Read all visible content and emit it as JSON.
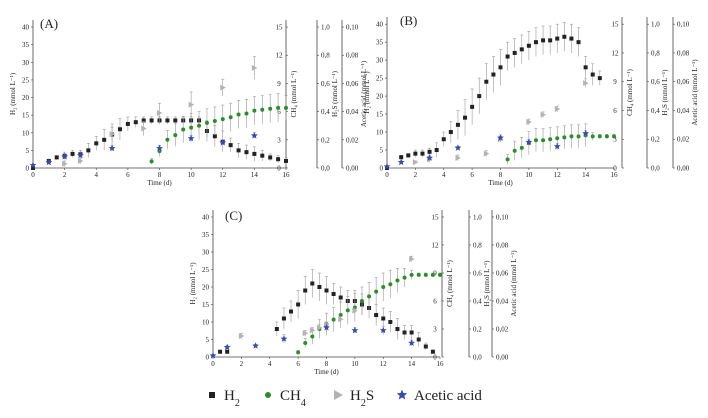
{
  "figure": {
    "legend": [
      {
        "key": "h2",
        "label": "H",
        "sub": "2",
        "symbol": "square",
        "color": "#222222"
      },
      {
        "key": "ch4",
        "label": "CH",
        "sub": "4",
        "symbol": "circle",
        "color": "#2e8b2e"
      },
      {
        "key": "h2s",
        "label": "H",
        "sub": "2",
        "tail": "S",
        "symbol": "triangle",
        "color": "#b3b3b3"
      },
      {
        "key": "acetic",
        "label": "Acetic acid",
        "symbol": "star",
        "color": "#3b4ca8"
      }
    ]
  },
  "chart_data": [
    {
      "panel": "(A)",
      "type": "scatter",
      "xlabel": "Time (d)",
      "xlim": [
        0,
        16
      ],
      "xticks": [
        0,
        2,
        4,
        6,
        8,
        10,
        12,
        14,
        16
      ],
      "axes": {
        "h2": {
          "label": "H₂ (mmol L⁻¹)",
          "lim": [
            0,
            42
          ],
          "ticks": [
            0,
            5,
            10,
            15,
            20,
            25,
            30,
            35,
            40
          ]
        },
        "ch4": {
          "label": "CH₄ (mmol L⁻¹)",
          "lim": [
            0,
            15.75
          ],
          "ticks": [
            0,
            3,
            6,
            9,
            12,
            15
          ]
        },
        "h2s": {
          "label": "H₂S (mmol L⁻¹)",
          "lim": [
            0,
            1.05
          ],
          "ticks": [
            "0,0",
            "0,2",
            "0,4",
            "0,6",
            "0,8",
            "1,0"
          ]
        },
        "acetic": {
          "label": "Acetic acid (mmol L⁻¹)",
          "lim": [
            0,
            0.105
          ],
          "ticks": [
            "0,00",
            "0,02",
            "0,04",
            "0,06",
            "0,08",
            "0,10"
          ]
        }
      },
      "series": [
        {
          "name": "H₂",
          "x": [
            0,
            1,
            1.5,
            2,
            2.5,
            3,
            3.5,
            4,
            4.5,
            5,
            5.5,
            6,
            6.5,
            7,
            7.5,
            8,
            8.5,
            9,
            9.5,
            10,
            10.5,
            11,
            11.5,
            12,
            12.5,
            13,
            13.5,
            14,
            14.5,
            15,
            15.5,
            16
          ],
          "y": [
            0,
            2,
            3,
            3.5,
            4,
            4,
            5,
            7,
            8,
            9.5,
            11,
            12.5,
            13,
            13.5,
            13.5,
            13.5,
            13.5,
            13.5,
            13.5,
            13.5,
            13.5,
            10.5,
            9,
            7.5,
            6.5,
            5,
            4.5,
            4,
            3.5,
            3,
            2.5,
            2
          ],
          "err": [
            0,
            0.5,
            0.5,
            1,
            1,
            1,
            2,
            2,
            3,
            3,
            3,
            2,
            1.5,
            1,
            1,
            1,
            1,
            1,
            1,
            1,
            1,
            3,
            3,
            3,
            2,
            2,
            2,
            2,
            1.5,
            1,
            1,
            1
          ]
        },
        {
          "name": "CH₄",
          "x": [
            7.5,
            8,
            8.5,
            9,
            9.5,
            10,
            10.5,
            11,
            11.5,
            12,
            12.5,
            13,
            13.5,
            14,
            14.5,
            15,
            15.5,
            16
          ],
          "y": [
            0.7,
            1.8,
            3,
            3.5,
            4.1,
            4.3,
            4.5,
            4.8,
            5,
            5.2,
            5.4,
            5.7,
            5.8,
            6.1,
            6.2,
            6.3,
            6.4,
            6.4
          ],
          "err": [
            0.3,
            0.6,
            1,
            1.2,
            1.4,
            1.5,
            1.5,
            1.5,
            1.5,
            1.5,
            1.5,
            1.5,
            1.5,
            1.5,
            1.5,
            1.5,
            1.5,
            1.3
          ]
        },
        {
          "name": "H₂S",
          "x": [
            2,
            3,
            5,
            7,
            8,
            10,
            12,
            14
          ],
          "y": [
            0.03,
            0.05,
            0.24,
            0.28,
            0.39,
            0.45,
            0.57,
            0.71
          ],
          "err": [
            0.02,
            0.02,
            0.05,
            0.05,
            0.07,
            0.09,
            0.06,
            0.08
          ]
        },
        {
          "name": "Acetic acid",
          "x": [
            0,
            1,
            2,
            3,
            5,
            8,
            10,
            12,
            14
          ],
          "y": [
            0.002,
            0.004,
            0.008,
            0.009,
            0.014,
            0.014,
            0.021,
            0.018,
            0.023
          ],
          "err": [
            0,
            0.001,
            0.002,
            0.002,
            0.002,
            0.002,
            0.002,
            0.002,
            0.002
          ]
        }
      ]
    },
    {
      "panel": "(B)",
      "type": "scatter",
      "xlabel": "Time (d)",
      "xlim": [
        0,
        16
      ],
      "xticks": [
        0,
        2,
        4,
        6,
        8,
        10,
        12,
        14,
        16
      ],
      "axes": {
        "h2": {
          "label": "H₂ (mmol L⁻¹)",
          "lim": [
            0,
            42
          ],
          "ticks": [
            0,
            5,
            10,
            15,
            20,
            25,
            30,
            35,
            40
          ]
        },
        "ch4": {
          "label": "CH₄ (mmol L⁻¹)",
          "lim": [
            0,
            15.75
          ],
          "ticks": [
            0,
            3,
            6,
            9,
            12,
            15
          ]
        },
        "h2s": {
          "label": "H₂S (mmol L⁻¹)",
          "lim": [
            0,
            1.05
          ],
          "ticks": [
            "0,0",
            "0,2",
            "0,4",
            "0,6",
            "0,8",
            "1,0"
          ]
        },
        "acetic": {
          "label": "Acetic acid (mmol L⁻¹)",
          "lim": [
            0,
            0.105
          ],
          "ticks": [
            "0,00",
            "0,02",
            "0,04",
            "0,06",
            "0,08",
            "0,10"
          ]
        }
      },
      "series": [
        {
          "name": "H₂",
          "x": [
            0,
            1,
            1.5,
            2,
            2.5,
            3,
            3.5,
            4,
            4.5,
            5,
            5.5,
            6,
            6.5,
            7,
            7.5,
            8,
            8.5,
            9,
            9.5,
            10,
            10.5,
            11,
            11.5,
            12,
            12.5,
            13,
            13.5,
            14,
            14.5,
            15
          ],
          "y": [
            0,
            3,
            3.5,
            4,
            4,
            4.5,
            5,
            8,
            10,
            12,
            14,
            17,
            20,
            24,
            26,
            28,
            31,
            32,
            33,
            34,
            35,
            35.5,
            35.5,
            36,
            36.5,
            36,
            35,
            28,
            26,
            25
          ],
          "err": [
            0,
            0.5,
            0.5,
            1,
            1,
            1,
            2,
            2,
            3,
            4,
            5,
            5,
            5,
            5,
            5,
            5,
            4,
            4,
            4,
            4,
            4,
            4,
            4,
            4,
            4,
            4,
            4,
            3,
            3,
            2
          ]
        },
        {
          "name": "CH₄",
          "x": [
            8.5,
            9,
            9.5,
            10,
            10.5,
            11,
            11.5,
            12,
            12.5,
            13,
            13.5,
            14,
            14.5,
            15,
            15.5,
            16
          ],
          "y": [
            0.9,
            1.8,
            2.1,
            2.6,
            2.9,
            2.9,
            3.0,
            3.1,
            3.2,
            3.3,
            3.3,
            3.4,
            3.3,
            3.3,
            3.3,
            3.3
          ],
          "err": [
            0.5,
            1,
            1.1,
            1.2,
            1.2,
            1.2,
            1.2,
            1.2,
            1.2,
            1.2,
            1.2,
            1.2,
            0.4,
            0.2,
            0.2,
            0.2
          ]
        },
        {
          "name": "H₂S",
          "x": [
            2,
            3,
            5,
            7,
            8,
            10,
            11,
            12,
            14
          ],
          "y": [
            0.04,
            0.06,
            0.07,
            0.1,
            0.2,
            0.32,
            0.37,
            0.41,
            0.59
          ],
          "err": [
            0.01,
            0.02,
            0.02,
            0.02,
            0.02,
            0.02,
            0.02,
            0.02,
            0.03
          ]
        },
        {
          "name": "Acetic acid",
          "x": [
            0,
            1,
            3,
            5,
            8,
            10,
            12,
            14
          ],
          "y": [
            0.001,
            0.004,
            0.007,
            0.014,
            0.021,
            0.018,
            0.015,
            0.024
          ],
          "err": [
            0,
            0.001,
            0.002,
            0.001,
            0.002,
            0.002,
            0.002,
            0.002
          ]
        }
      ]
    },
    {
      "panel": "(C)",
      "type": "scatter",
      "xlabel": "Time (d)",
      "xlim": [
        0,
        16
      ],
      "xticks": [
        0,
        2,
        4,
        6,
        8,
        10,
        12,
        14,
        16
      ],
      "axes": {
        "h2": {
          "label": "H₂ (mmol L⁻¹)",
          "lim": [
            0,
            42
          ],
          "ticks": [
            0,
            5,
            10,
            15,
            20,
            25,
            30,
            35,
            40
          ]
        },
        "ch4": {
          "label": "CH₄ (mmol L⁻¹)",
          "lim": [
            0,
            15.75
          ],
          "ticks": [
            0,
            3,
            6,
            9,
            12,
            15
          ]
        },
        "h2s": {
          "label": "H₂S (mmol L⁻¹)",
          "lim": [
            0,
            1.05
          ],
          "ticks": [
            "0,0",
            "0,2",
            "0,4",
            "0,6",
            "0,8",
            "1,0"
          ]
        },
        "acetic": {
          "label": "Acetic acid (mmol L⁻¹)",
          "lim": [
            0,
            0.105
          ],
          "ticks": [
            "0,00",
            "0,02",
            "0,04",
            "0,06",
            "0,08",
            "0,10"
          ]
        }
      },
      "series": [
        {
          "name": "H₂",
          "x": [
            0.5,
            1,
            4.5,
            5,
            5.5,
            6,
            6.5,
            7,
            7.5,
            8,
            8.5,
            9,
            9.5,
            10,
            10.5,
            11,
            11.5,
            12,
            12.5,
            13,
            13.5,
            14,
            14.5,
            15,
            15.5
          ],
          "y": [
            1.5,
            1.5,
            8,
            11,
            13,
            15,
            19,
            21,
            20,
            19,
            18,
            17,
            16,
            16,
            15,
            14,
            12,
            11,
            10,
            8,
            7,
            7,
            5,
            3,
            1.5
          ],
          "err": [
            0,
            0,
            2,
            3,
            3,
            4,
            4,
            4,
            4,
            4,
            3,
            3,
            3,
            3,
            3,
            3,
            3,
            3,
            3,
            3,
            2,
            2,
            2,
            1,
            0.5
          ]
        },
        {
          "name": "CH₄",
          "x": [
            6,
            6.5,
            7,
            7.5,
            8,
            8.5,
            9,
            9.5,
            10,
            10.5,
            11,
            11.5,
            12,
            12.5,
            13,
            13.5,
            14,
            14.5,
            15,
            15.5,
            16
          ],
          "y": [
            0.5,
            1.5,
            2.2,
            3,
            3.5,
            4,
            4.5,
            5,
            5.3,
            6,
            6.5,
            7,
            7.5,
            7.8,
            8.2,
            8.5,
            8.8,
            8.8,
            8.8,
            8.8,
            8.8
          ],
          "err": [
            0.2,
            0.5,
            0.8,
            1,
            1.2,
            1.3,
            1.4,
            1.5,
            1.5,
            1.5,
            1.5,
            1.5,
            1.5,
            1.5,
            1.3,
            1,
            0.5,
            0.2,
            0.2,
            0.2,
            0.2
          ]
        },
        {
          "name": "H₂S",
          "x": [
            2,
            6.5,
            7,
            7.5,
            8,
            9,
            10,
            14
          ],
          "y": [
            0.15,
            0.17,
            0.19,
            0.21,
            0.23,
            0.27,
            0.33,
            0.7
          ],
          "err": [
            0.02,
            0.02,
            0.02,
            0.02,
            0.02,
            0.02,
            0.02,
            0.02
          ]
        },
        {
          "name": "Acetic acid",
          "x": [
            0,
            1,
            3,
            5,
            8,
            10,
            12,
            14
          ],
          "y": [
            0.001,
            0.007,
            0.008,
            0.013,
            0.021,
            0.019,
            0.019,
            0.01
          ],
          "err": [
            0,
            0.001,
            0.001,
            0.003,
            0.003,
            0.002,
            0.003,
            0.002
          ]
        }
      ]
    }
  ]
}
